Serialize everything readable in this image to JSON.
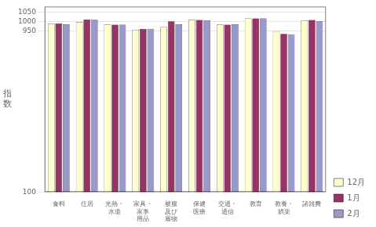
{
  "chart_data": {
    "type": "bar",
    "categories": [
      "食料",
      "住居",
      "光熱・\n水道",
      "家具・\n家事\n用品",
      "被服\n及び\n履物",
      "保健\n医療",
      "交通・\n通信",
      "教育",
      "教養・\n娯楽",
      "諸雑費"
    ],
    "series": [
      {
        "name": "12月",
        "color": "#FFFFCC",
        "values": [
          990,
          998,
          985,
          958,
          972,
          1010,
          985,
          1018,
          950,
          1007
        ]
      },
      {
        "name": "1月",
        "color": "#993366",
        "values": [
          991,
          1012,
          984,
          962,
          1002,
          1009,
          984,
          1017,
          936,
          1009
        ]
      },
      {
        "name": "2月",
        "color": "#9999CC",
        "values": [
          986,
          1010,
          984,
          963,
          986,
          1007,
          986,
          1018,
          934,
          1002
        ]
      }
    ],
    "ylabel": "指\n数",
    "ylim": [
      100,
      1080
    ],
    "yticks": [
      100,
      950,
      1000,
      1050
    ],
    "grid": true,
    "legend": "right"
  }
}
